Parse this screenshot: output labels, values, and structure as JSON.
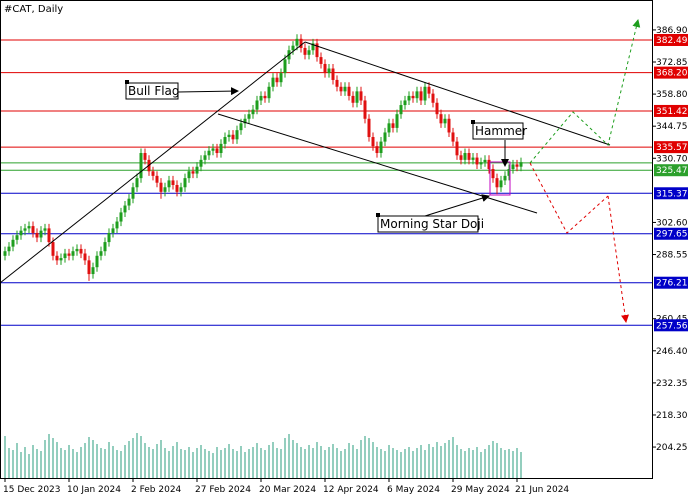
{
  "chart_data": {
    "type": "candlestick",
    "title": "#CAT, Daily",
    "up_color": "#1e9e1e",
    "down_color": "#e01010",
    "volume_color": "#2a9d7c",
    "xlim": [
      -1.25,
      161.75
    ],
    "ylim": [
      190.7,
      400.0
    ],
    "xticks": [
      {
        "value": 0,
        "label": "15 Dec 2023"
      },
      {
        "value": 16,
        "label": "10 Jan 2024"
      },
      {
        "value": 32,
        "label": "2 Feb 2024"
      },
      {
        "value": 48,
        "label": "27 Feb 2024"
      },
      {
        "value": 64,
        "label": "20 Mar 2024"
      },
      {
        "value": 80,
        "label": "12 Apr 2024"
      },
      {
        "value": 96,
        "label": "6 May 2024"
      },
      {
        "value": 112,
        "label": "29 May 2024"
      },
      {
        "value": 128,
        "label": "21 Jun 2024"
      }
    ],
    "yticks": [
      {
        "value": 386.9,
        "label": "386.90"
      },
      {
        "value": 372.85,
        "label": "372.85"
      },
      {
        "value": 358.8,
        "label": "358.80"
      },
      {
        "value": 344.75,
        "label": "344.75"
      },
      {
        "value": 330.7,
        "label": "330.70"
      },
      {
        "value": 302.6,
        "label": "302.60"
      },
      {
        "value": 288.55,
        "label": "288.55"
      },
      {
        "value": 260.45,
        "label": "260.45"
      },
      {
        "value": 246.4,
        "label": "246.40"
      },
      {
        "value": 232.35,
        "label": "232.35"
      },
      {
        "value": 218.3,
        "label": "218.30"
      },
      {
        "value": 204.25,
        "label": "204.25"
      }
    ],
    "levels": [
      {
        "value": 382.49,
        "label": "382.49",
        "color": "#e00000"
      },
      {
        "value": 368.2,
        "label": "368.20",
        "color": "#e00000"
      },
      {
        "value": 351.42,
        "label": "351.42",
        "color": "#e00000"
      },
      {
        "value": 335.57,
        "label": "335.57",
        "color": "#e00000"
      },
      {
        "value": 328.7,
        "color": "#2ca02c"
      },
      {
        "value": 325.47,
        "label": "325.47",
        "color": "#2ca02c"
      },
      {
        "value": 315.37,
        "label": "315.37",
        "color": "#0000c8"
      },
      {
        "value": 297.65,
        "label": "297.65",
        "color": "#0000c8"
      },
      {
        "value": 276.21,
        "label": "276.21",
        "color": "#0000c8"
      },
      {
        "value": 257.56,
        "label": "257.56",
        "color": "#0000c8"
      }
    ],
    "annotations": [
      "Bull Flag",
      "Hammer",
      "Morning Star Doji"
    ],
    "candles": [
      [
        288,
        292,
        286,
        290
      ],
      [
        290,
        294,
        288,
        292
      ],
      [
        292,
        297,
        290,
        295
      ],
      [
        295,
        299,
        293,
        297
      ],
      [
        297,
        301,
        295,
        299
      ],
      [
        299,
        302,
        297,
        300
      ],
      [
        300,
        303,
        298,
        301
      ],
      [
        301,
        303,
        296,
        298
      ],
      [
        298,
        300,
        294,
        296
      ],
      [
        296,
        301,
        294,
        299
      ],
      [
        299,
        302,
        297,
        300
      ],
      [
        300,
        302,
        292,
        294
      ],
      [
        294,
        296,
        286,
        288
      ],
      [
        288,
        290,
        284,
        286
      ],
      [
        286,
        289,
        284,
        287
      ],
      [
        287,
        291,
        285,
        289
      ],
      [
        289,
        291,
        286,
        288
      ],
      [
        288,
        292,
        286,
        290
      ],
      [
        290,
        293,
        288,
        291
      ],
      [
        291,
        293,
        287,
        289
      ],
      [
        289,
        291,
        284,
        286
      ],
      [
        286,
        288,
        277,
        280
      ],
      [
        280,
        285,
        278,
        283
      ],
      [
        283,
        290,
        281,
        288
      ],
      [
        288,
        292,
        286,
        290
      ],
      [
        290,
        296,
        288,
        294
      ],
      [
        294,
        300,
        292,
        298
      ],
      [
        298,
        302,
        296,
        300
      ],
      [
        300,
        305,
        298,
        303
      ],
      [
        303,
        309,
        301,
        307
      ],
      [
        307,
        312,
        305,
        310
      ],
      [
        310,
        315,
        308,
        313
      ],
      [
        313,
        320,
        311,
        318
      ],
      [
        318,
        324,
        316,
        322
      ],
      [
        322,
        335,
        320,
        333
      ],
      [
        333,
        335,
        328,
        330
      ],
      [
        330,
        332,
        323,
        325
      ],
      [
        325,
        327,
        321,
        323
      ],
      [
        323,
        325,
        318,
        320
      ],
      [
        320,
        322,
        313,
        316
      ],
      [
        316,
        320,
        314,
        318
      ],
      [
        318,
        323,
        316,
        321
      ],
      [
        321,
        323,
        317,
        319
      ],
      [
        319,
        321,
        314,
        316
      ],
      [
        316,
        320,
        314,
        318
      ],
      [
        318,
        324,
        316,
        322
      ],
      [
        322,
        327,
        320,
        325
      ],
      [
        325,
        327,
        322,
        324
      ],
      [
        324,
        329,
        322,
        327
      ],
      [
        327,
        332,
        325,
        330
      ],
      [
        330,
        334,
        328,
        332
      ],
      [
        332,
        336,
        330,
        334
      ],
      [
        334,
        337,
        332,
        335
      ],
      [
        335,
        337,
        331,
        333
      ],
      [
        333,
        339,
        331,
        337
      ],
      [
        337,
        342,
        335,
        340
      ],
      [
        340,
        343,
        338,
        341
      ],
      [
        341,
        343,
        337,
        339
      ],
      [
        339,
        345,
        337,
        343
      ],
      [
        343,
        348,
        341,
        346
      ],
      [
        346,
        350,
        344,
        348
      ],
      [
        348,
        352,
        346,
        350
      ],
      [
        350,
        354,
        348,
        352
      ],
      [
        352,
        358,
        350,
        356
      ],
      [
        356,
        360,
        354,
        358
      ],
      [
        358,
        360,
        355,
        357
      ],
      [
        357,
        364,
        355,
        362
      ],
      [
        362,
        368,
        360,
        366
      ],
      [
        366,
        368,
        362,
        364
      ],
      [
        364,
        370,
        362,
        368
      ],
      [
        368,
        376,
        366,
        374
      ],
      [
        374,
        380,
        372,
        378
      ],
      [
        378,
        382,
        376,
        380
      ],
      [
        380,
        385,
        378,
        383
      ],
      [
        383,
        385,
        377,
        379
      ],
      [
        379,
        381,
        374,
        376
      ],
      [
        376,
        380,
        374,
        378
      ],
      [
        378,
        383,
        376,
        381
      ],
      [
        381,
        383,
        373,
        375
      ],
      [
        375,
        377,
        370,
        372
      ],
      [
        372,
        374,
        366,
        368
      ],
      [
        368,
        372,
        366,
        370
      ],
      [
        370,
        372,
        363,
        365
      ],
      [
        365,
        367,
        360,
        362
      ],
      [
        362,
        364,
        358,
        360
      ],
      [
        360,
        364,
        358,
        362
      ],
      [
        362,
        364,
        356,
        358
      ],
      [
        358,
        360,
        353,
        355
      ],
      [
        355,
        362,
        353,
        360
      ],
      [
        360,
        362,
        354,
        356
      ],
      [
        356,
        358,
        346,
        348
      ],
      [
        348,
        350,
        338,
        340
      ],
      [
        340,
        342,
        334,
        336
      ],
      [
        336,
        338,
        331,
        333
      ],
      [
        333,
        340,
        331,
        338
      ],
      [
        338,
        344,
        336,
        342
      ],
      [
        342,
        348,
        340,
        346
      ],
      [
        346,
        348,
        342,
        344
      ],
      [
        344,
        352,
        342,
        350
      ],
      [
        350,
        356,
        348,
        354
      ],
      [
        354,
        358,
        352,
        356
      ],
      [
        356,
        360,
        354,
        358
      ],
      [
        358,
        360,
        355,
        357
      ],
      [
        357,
        362,
        355,
        360
      ],
      [
        360,
        362,
        354,
        356
      ],
      [
        356,
        364,
        354,
        362
      ],
      [
        362,
        364,
        357,
        359
      ],
      [
        359,
        361,
        353,
        355
      ],
      [
        355,
        357,
        348,
        350
      ],
      [
        350,
        352,
        344,
        346
      ],
      [
        346,
        350,
        344,
        348
      ],
      [
        348,
        350,
        340,
        342
      ],
      [
        342,
        344,
        336,
        338
      ],
      [
        338,
        340,
        330,
        332
      ],
      [
        332,
        334,
        328,
        330
      ],
      [
        330,
        335,
        328,
        333
      ],
      [
        333,
        335,
        328,
        330
      ],
      [
        330,
        333,
        328,
        331
      ],
      [
        331,
        333,
        326,
        328
      ],
      [
        328,
        331,
        326,
        329
      ],
      [
        329,
        332,
        327,
        330
      ],
      [
        330,
        332,
        324,
        326
      ],
      [
        326,
        328,
        320,
        322
      ],
      [
        322,
        324,
        315,
        318
      ],
      [
        318,
        323,
        316,
        321
      ],
      [
        321,
        325,
        319,
        323
      ],
      [
        323,
        328,
        321,
        326
      ],
      [
        326,
        330,
        324,
        328
      ],
      [
        328,
        330,
        325,
        327
      ],
      [
        327,
        331,
        325,
        329
      ]
    ],
    "volume": [
      42,
      30,
      28,
      35,
      26,
      31,
      24,
      33,
      29,
      27,
      38,
      44,
      40,
      36,
      30,
      28,
      33,
      29,
      26,
      31,
      35,
      41,
      38,
      34,
      30,
      29,
      36,
      32,
      28,
      27,
      33,
      37,
      40,
      45,
      42,
      35,
      31,
      29,
      34,
      38,
      30,
      27,
      32,
      36,
      29,
      28,
      31,
      26,
      30,
      33,
      29,
      27,
      25,
      31,
      28,
      30,
      34,
      29,
      27,
      32,
      26,
      29,
      31,
      35,
      30,
      28,
      33,
      36,
      30,
      29,
      40,
      44,
      38,
      35,
      31,
      29,
      33,
      30,
      36,
      32,
      28,
      31,
      34,
      30,
      27,
      29,
      35,
      33,
      29,
      38,
      42,
      40,
      36,
      31,
      29,
      27,
      33,
      30,
      28,
      26,
      29,
      31,
      27,
      30,
      33,
      28,
      34,
      31,
      36,
      32,
      35,
      38,
      41,
      33,
      29,
      27,
      30,
      28,
      31,
      26,
      29,
      33,
      37,
      35,
      30,
      28,
      29,
      27,
      30,
      26
    ]
  }
}
